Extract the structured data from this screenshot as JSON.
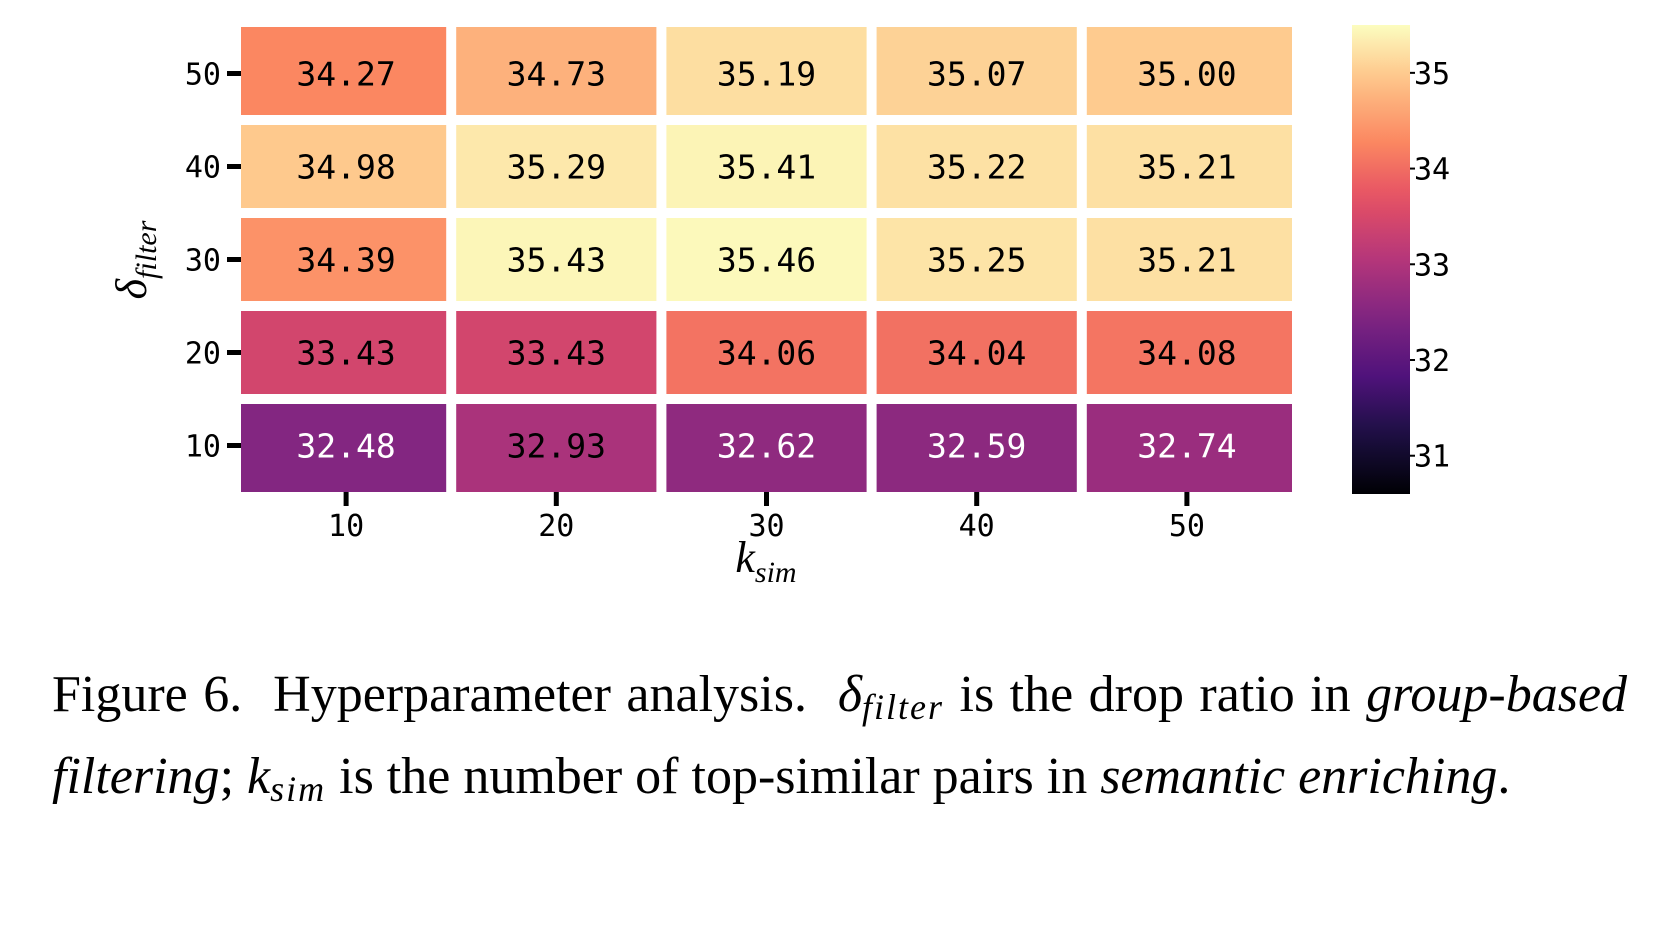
{
  "chart_data": {
    "type": "heatmap",
    "x_categories": [
      "10",
      "20",
      "30",
      "40",
      "50"
    ],
    "y_categories": [
      "50",
      "40",
      "30",
      "20",
      "10"
    ],
    "values": [
      [
        34.27,
        34.73,
        35.19,
        35.07,
        35.0
      ],
      [
        34.98,
        35.29,
        35.41,
        35.22,
        35.21
      ],
      [
        34.39,
        35.43,
        35.46,
        35.25,
        35.21
      ],
      [
        33.43,
        33.43,
        34.06,
        34.04,
        34.08
      ],
      [
        32.48,
        32.93,
        32.62,
        32.59,
        32.74
      ]
    ],
    "cell_labels": [
      [
        "34.27",
        "34.73",
        "35.19",
        "35.07",
        "35.00"
      ],
      [
        "34.98",
        "35.29",
        "35.41",
        "35.22",
        "35.21"
      ],
      [
        "34.39",
        "35.43",
        "35.46",
        "35.25",
        "35.21"
      ],
      [
        "33.43",
        "33.43",
        "34.06",
        "34.04",
        "34.08"
      ],
      [
        "32.48",
        "32.93",
        "32.62",
        "32.59",
        "32.74"
      ]
    ],
    "xlabel": {
      "main": "k",
      "sub": "sim"
    },
    "ylabel": {
      "main": "δ",
      "sub": "filter"
    },
    "colormap": "magma",
    "colorbar": {
      "range": [
        30.6,
        35.5
      ],
      "ticks": [
        35,
        34,
        33,
        32,
        31
      ],
      "tick_labels": [
        "35",
        "34",
        "33",
        "32",
        "31"
      ]
    }
  },
  "caption": {
    "label": "Figure 6.",
    "title": "Hyperparameter analysis.",
    "delta_symbol": "δ",
    "delta_sub": "filter",
    "text1": "is the drop ratio in",
    "gbf": "group-based filtering",
    "semicolon": ";",
    "k_symbol": "k",
    "k_sub": "sim",
    "text2": "is the number of top-similar pairs in",
    "se": "semantic enriching",
    "period": "."
  }
}
